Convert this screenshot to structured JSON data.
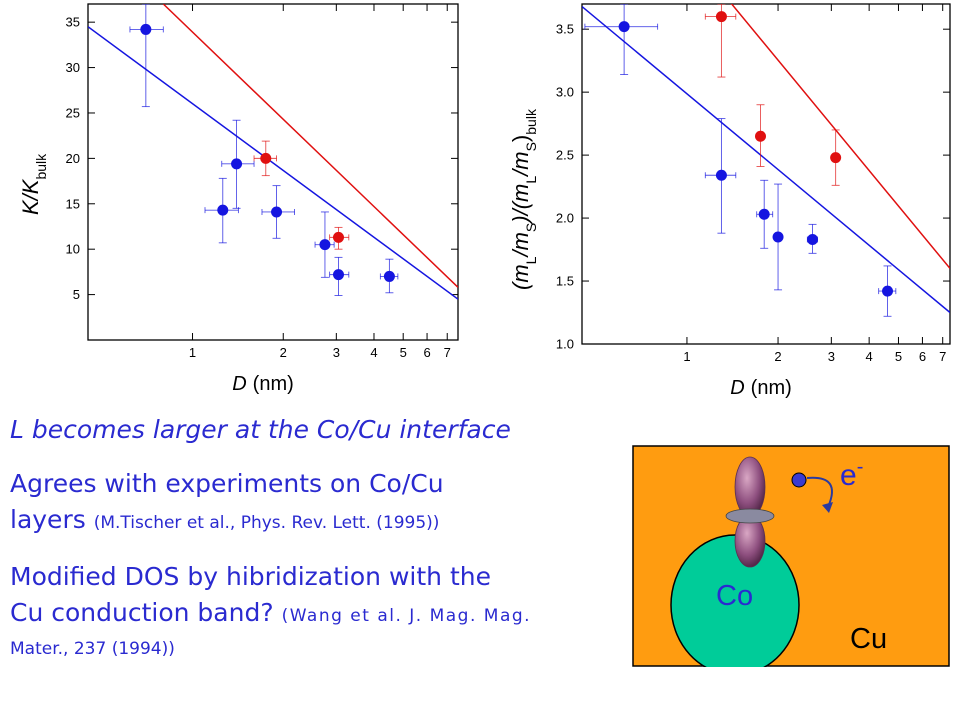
{
  "chart_data": [
    {
      "type": "scatter",
      "xscale": "log",
      "xlabel_italic": "D",
      "xlabel_unit": "(nm)",
      "ylabel_main": "K/K",
      "ylabel_sub": "bulk",
      "xlim": [
        0.45,
        7.6
      ],
      "ylim": [
        0,
        37
      ],
      "xticks": [
        {
          "v": 1,
          "label": "1"
        },
        {
          "v": 2,
          "label": "2"
        },
        {
          "v": 3,
          "label": "3"
        },
        {
          "v": 4,
          "label": "4"
        },
        {
          "v": 5,
          "label": "5"
        },
        {
          "v": 6,
          "label": "6"
        },
        {
          "v": 7,
          "label": "7"
        }
      ],
      "yticks": [
        5,
        10,
        15,
        20,
        25,
        30,
        35
      ],
      "series": [
        {
          "color": "#1515e0",
          "points": [
            {
              "x": 0.7,
              "y": 34.2,
              "xerr": [
                0.62,
                0.8
              ],
              "yerr": [
                25.7,
                37.0
              ]
            },
            {
              "x": 1.26,
              "y": 14.3,
              "xerr": [
                1.1,
                1.42
              ],
              "yerr": [
                10.7,
                17.8
              ]
            },
            {
              "x": 1.4,
              "y": 19.4,
              "xerr": [
                1.25,
                1.6
              ],
              "yerr": [
                14.5,
                24.2
              ]
            },
            {
              "x": 1.9,
              "y": 14.1,
              "xerr": [
                1.7,
                2.18
              ],
              "yerr": [
                11.2,
                17.0
              ]
            },
            {
              "x": 2.75,
              "y": 10.5,
              "xerr": [
                2.55,
                2.95
              ],
              "yerr": [
                6.9,
                14.1
              ]
            },
            {
              "x": 3.05,
              "y": 7.2,
              "xerr": [
                2.85,
                3.3
              ],
              "yerr": [
                4.9,
                9.1
              ]
            },
            {
              "x": 4.5,
              "y": 7.0,
              "xerr": [
                4.2,
                4.8
              ],
              "yerr": [
                5.2,
                8.9
              ]
            }
          ],
          "fit": {
            "x": [
              0.45,
              7.6
            ],
            "y": [
              34.5,
              4.5
            ]
          }
        },
        {
          "color": "#e01010",
          "points": [
            {
              "x": 1.75,
              "y": 20.0,
              "xerr": [
                1.6,
                1.9
              ],
              "yerr": [
                18.1,
                21.9
              ]
            },
            {
              "x": 3.05,
              "y": 11.3,
              "xerr": [
                2.85,
                3.3
              ],
              "yerr": [
                10.0,
                12.4
              ]
            }
          ],
          "fit": {
            "x": [
              0.8,
              7.6
            ],
            "y": [
              37.0,
              5.8
            ]
          }
        }
      ]
    },
    {
      "type": "scatter",
      "xscale": "log",
      "xlabel_italic": "D",
      "xlabel_unit": "(nm)",
      "ylabel_parts": [
        "(m",
        "L",
        "/m",
        "S",
        ")/(m",
        "L",
        "/m",
        "S",
        ")",
        "bulk"
      ],
      "xlim": [
        0.45,
        7.4
      ],
      "ylim": [
        1.0,
        3.7
      ],
      "xticks": [
        {
          "v": 1,
          "label": "1"
        },
        {
          "v": 2,
          "label": "2"
        },
        {
          "v": 3,
          "label": "3"
        },
        {
          "v": 4,
          "label": "4"
        },
        {
          "v": 5,
          "label": "5"
        },
        {
          "v": 6,
          "label": "6"
        },
        {
          "v": 7,
          "label": "7"
        }
      ],
      "yticks": [
        "1.0",
        "1.5",
        "2.0",
        "2.5",
        "3.0",
        "3.5"
      ],
      "series": [
        {
          "color": "#1515e0",
          "points": [
            {
              "x": 0.62,
              "y": 3.52,
              "xerr": [
                0.46,
                0.8
              ],
              "yerr": [
                3.14,
                3.7
              ]
            },
            {
              "x": 1.3,
              "y": 2.34,
              "xerr": [
                1.15,
                1.45
              ],
              "yerr": [
                1.88,
                2.79
              ]
            },
            {
              "x": 1.8,
              "y": 2.03,
              "xerr": [
                1.7,
                1.92
              ],
              "yerr": [
                1.76,
                2.3
              ]
            },
            {
              "x": 2.0,
              "y": 1.85,
              "xerr": [
                1.95,
                2.05
              ],
              "yerr": [
                1.43,
                2.27
              ]
            },
            {
              "x": 2.6,
              "y": 1.83,
              "xerr": [
                2.5,
                2.7
              ],
              "yerr": [
                1.72,
                1.95
              ]
            },
            {
              "x": 4.6,
              "y": 1.42,
              "xerr": [
                4.3,
                4.9
              ],
              "yerr": [
                1.22,
                1.62
              ]
            }
          ],
          "fit": {
            "x": [
              0.45,
              7.4
            ],
            "y": [
              3.68,
              1.25
            ]
          }
        },
        {
          "color": "#e01010",
          "points": [
            {
              "x": 1.3,
              "y": 3.6,
              "xerr": [
                1.15,
                1.45
              ],
              "yerr": [
                3.12,
                3.7
              ]
            },
            {
              "x": 1.75,
              "y": 2.65,
              "xerr": [
                1.7,
                1.8
              ],
              "yerr": [
                2.41,
                2.9
              ]
            },
            {
              "x": 3.1,
              "y": 2.48,
              "xerr": [
                3.05,
                3.15
              ],
              "yerr": [
                2.26,
                2.7
              ]
            }
          ],
          "fit": {
            "x": [
              1.2,
              7.4
            ],
            "y": [
              3.9,
              1.6
            ]
          }
        }
      ]
    }
  ],
  "text": {
    "line1": "L becomes larger at the Co/Cu interface",
    "agree_big": "Agrees with experiments on  Co/Cu",
    "agree_big2": "layers",
    "agree_small": "(M.Tischer et al., Phys. Rev. Lett. (1995))",
    "modified_big": "Modified DOS by hibridization with the",
    "modified_big2": "Cu conduction band?",
    "modified_small": "(Wang et al. J. Mag. Mag.",
    "modified_small2": "Mater., 237 (1994))"
  },
  "figure": {
    "co_label": "Co",
    "cu_label": "Cu",
    "electron_label": "e",
    "electron_charge": "-",
    "bg_color": "#ff9c10",
    "co_color": "#00cc99"
  }
}
